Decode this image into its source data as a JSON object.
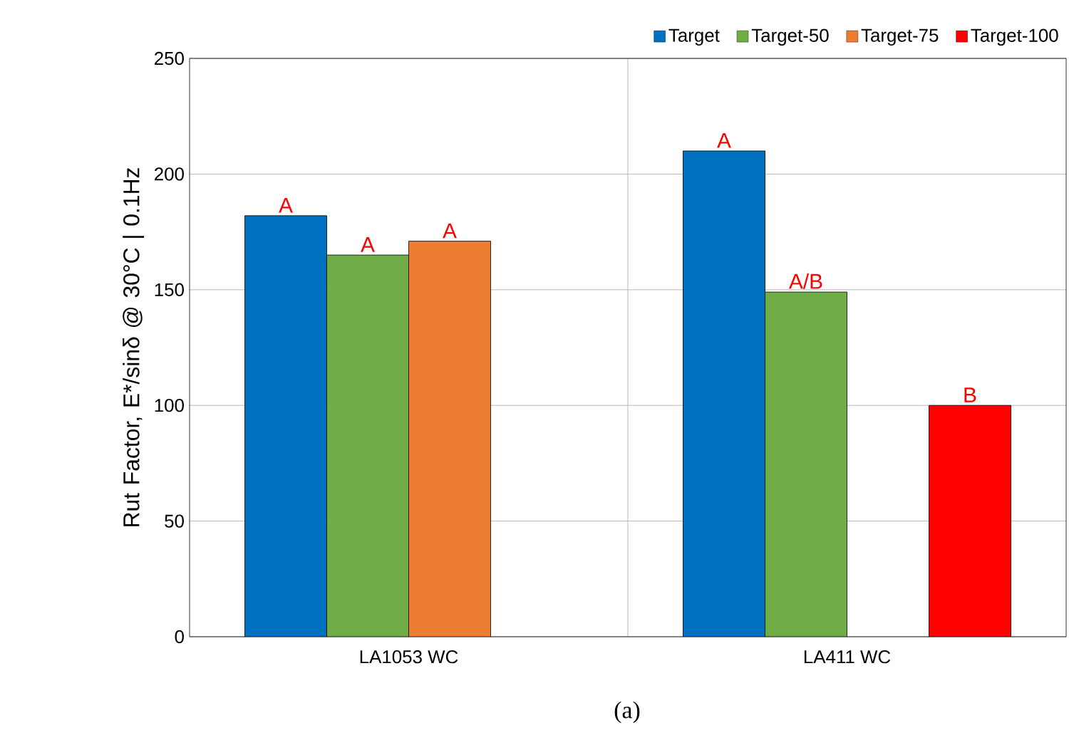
{
  "chart_data": {
    "type": "bar",
    "ylabel": "Rut Factor, E*/sinδ @ 30°C | 0.1Hz",
    "categories": [
      "LA1053 WC",
      "LA411 WC"
    ],
    "series": [
      {
        "name": "Target",
        "color": "#0070c0",
        "values": [
          182,
          210
        ],
        "value_labels": [
          "A",
          "A"
        ]
      },
      {
        "name": "Target-50",
        "color": "#70ad47",
        "values": [
          165,
          149
        ],
        "value_labels": [
          "A",
          "A/B"
        ]
      },
      {
        "name": "Target-75",
        "color": "#ed7d31",
        "values": [
          171,
          null
        ],
        "value_labels": [
          "A",
          null
        ]
      },
      {
        "name": "Target-100",
        "color": "#ff0000",
        "values": [
          null,
          100
        ],
        "value_labels": [
          null,
          "B"
        ]
      }
    ],
    "ylim": [
      0,
      250
    ],
    "yticks": [
      0,
      50,
      100,
      150,
      200,
      250
    ],
    "grid": true,
    "legend": "top right",
    "annotations": [
      "(a)"
    ]
  }
}
